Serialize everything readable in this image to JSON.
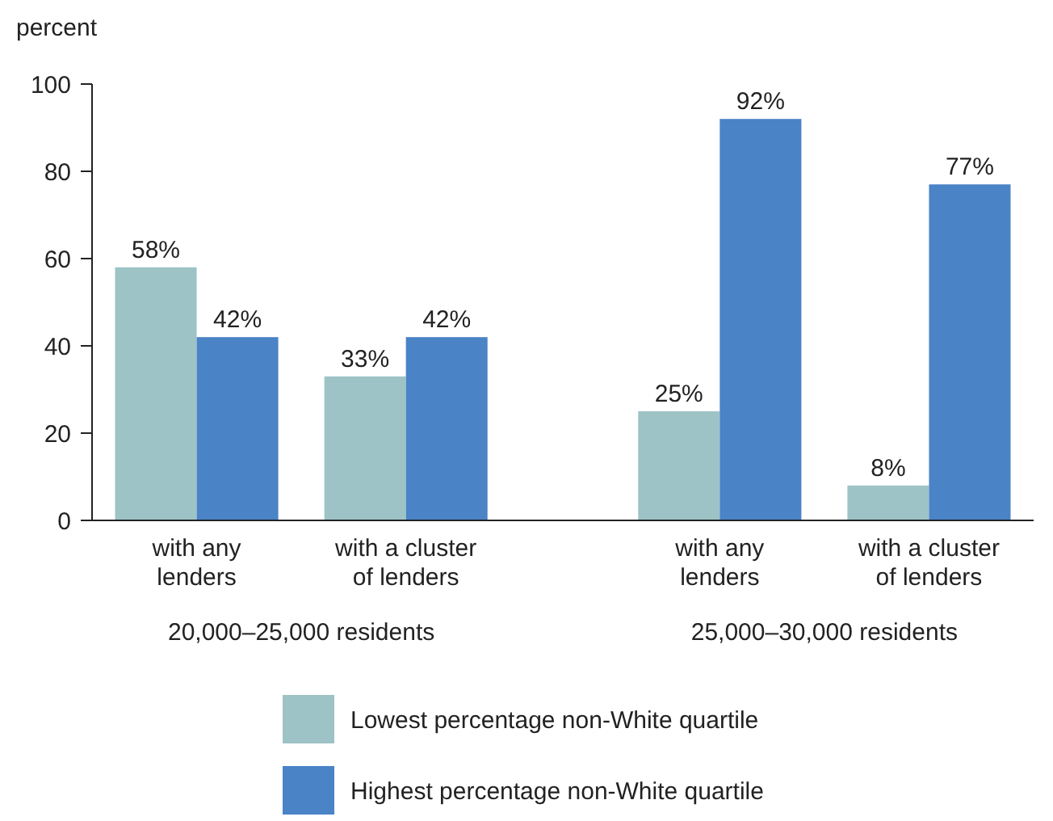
{
  "chart_data": {
    "type": "bar",
    "ylabel": "percent",
    "categories": [
      "with any lenders",
      "with a cluster of lenders",
      null,
      "with any lenders",
      "with a cluster of lenders"
    ],
    "series": [
      {
        "name": "Lowest percentage non-White quartile",
        "color": "#9dc3c6",
        "values": [
          58,
          33,
          null,
          25,
          8
        ],
        "value_labels": [
          "58%",
          "33%",
          null,
          "25%",
          "8%"
        ]
      },
      {
        "name": "Highest percentage non-White quartile",
        "color": "#4a83c6",
        "values": [
          42,
          42,
          null,
          92,
          77
        ],
        "value_labels": [
          "42%",
          "42%",
          null,
          "92%",
          "77%"
        ]
      }
    ],
    "ylim": [
      0,
      100
    ],
    "yticks": [
      0,
      20,
      40,
      60,
      80,
      100
    ],
    "grid": false,
    "legend": "bottom",
    "annotations": [
      "20,000–25,000 residents",
      "25,000–30,000 residents"
    ]
  }
}
